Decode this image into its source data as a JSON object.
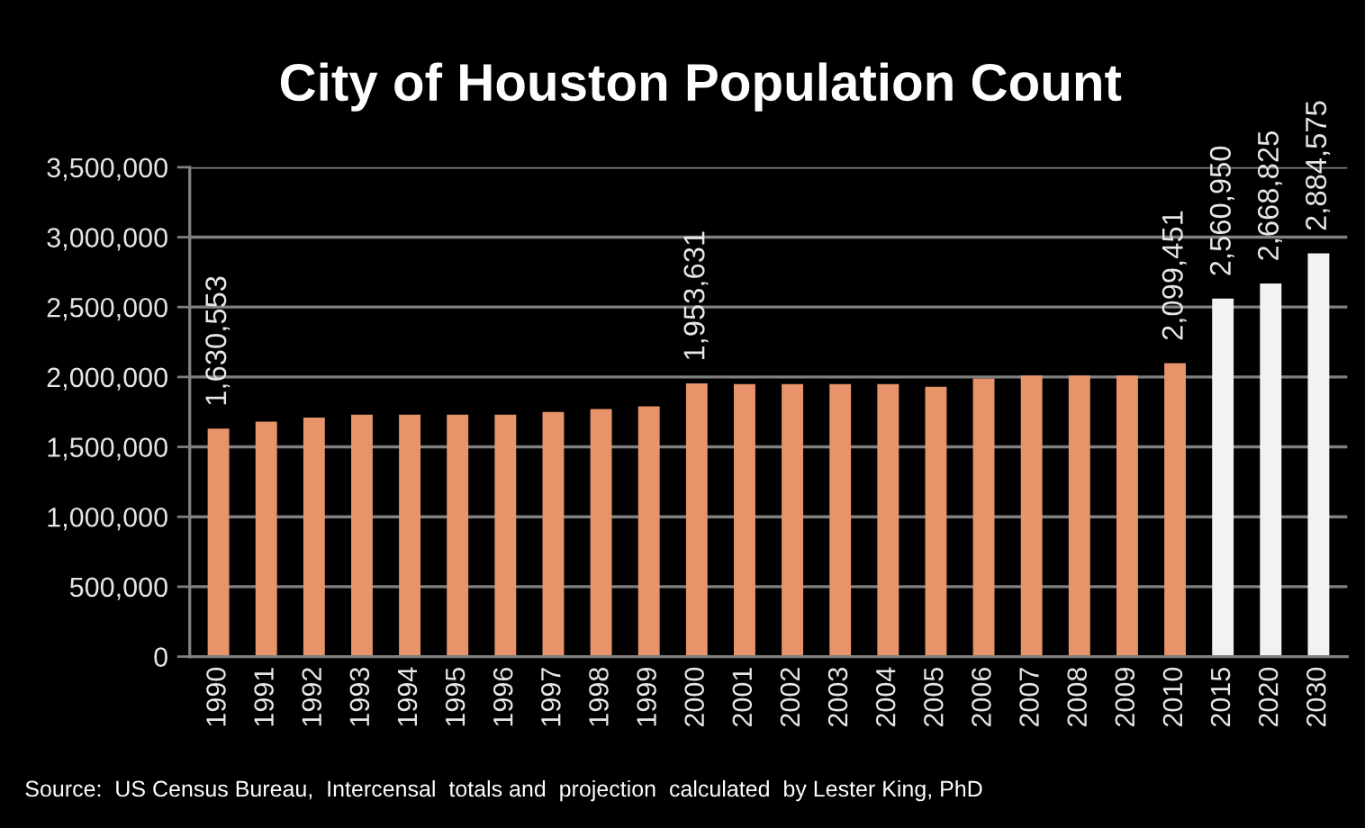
{
  "chart_data": {
    "type": "bar",
    "title": "City of Houston Population Count",
    "categories": [
      "1990",
      "1991",
      "1992",
      "1993",
      "1994",
      "1995",
      "1996",
      "1997",
      "1998",
      "1999",
      "2000",
      "2001",
      "2002",
      "2003",
      "2004",
      "2005",
      "2006",
      "2007",
      "2008",
      "2009",
      "2010",
      "2015",
      "2020",
      "2030"
    ],
    "values": [
      1630553,
      1680000,
      1710000,
      1730000,
      1730000,
      1730000,
      1730000,
      1750000,
      1770000,
      1790000,
      1953631,
      1950000,
      1950000,
      1950000,
      1950000,
      1930000,
      1990000,
      2010000,
      2010000,
      2010000,
      2099451,
      2560950,
      2668825,
      2884575
    ],
    "colors": [
      "#e8946a",
      "#e8946a",
      "#e8946a",
      "#e8946a",
      "#e8946a",
      "#e8946a",
      "#e8946a",
      "#e8946a",
      "#e8946a",
      "#e8946a",
      "#e8946a",
      "#e8946a",
      "#e8946a",
      "#e8946a",
      "#e8946a",
      "#e8946a",
      "#e8946a",
      "#e8946a",
      "#e8946a",
      "#e8946a",
      "#e8946a",
      "#f2f2f2",
      "#f2f2f2",
      "#f2f2f2"
    ],
    "value_labels": [
      "1,630,553",
      null,
      null,
      null,
      null,
      null,
      null,
      null,
      null,
      null,
      "1,953,631",
      null,
      null,
      null,
      null,
      null,
      null,
      null,
      null,
      null,
      "2,099,451",
      "2,560,950",
      "2,668,825",
      "2,884,575"
    ],
    "ylim": [
      0,
      3500000
    ],
    "yticks": [
      0,
      {
        "value": 500000,
        "label": "500,000"
      },
      {
        "value": 1000000,
        "label": "1,000,000"
      },
      {
        "value": 1500000,
        "label": "1,500,000"
      },
      {
        "value": 2000000,
        "label": "2,000,000"
      },
      {
        "value": 2500000,
        "label": "2,500,000"
      },
      {
        "value": 3000000,
        "label": "3,000,000"
      },
      {
        "value": 3500000,
        "label": "3,500,000"
      }
    ],
    "grid": "y",
    "annotations": [
      "Source:  US Census Bureau,  Intercensal  totals and  projection  calculated  by Lester King, PhD"
    ]
  }
}
